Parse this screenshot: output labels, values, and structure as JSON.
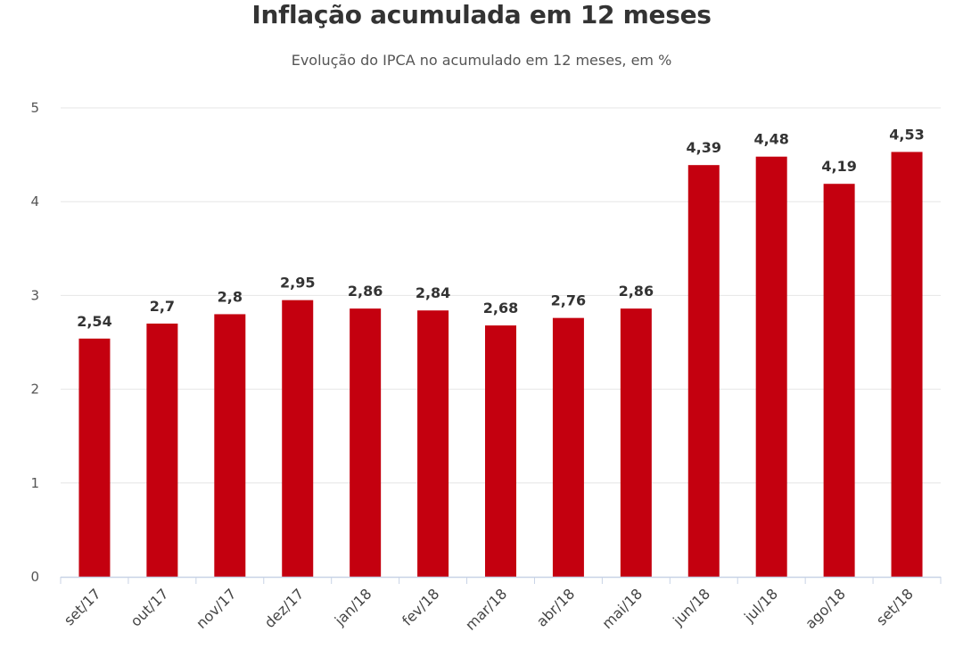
{
  "chart_data": {
    "type": "bar",
    "title": "Inflação acumulada em 12 meses",
    "subtitle": "Evolução do IPCA no acumulado em 12 meses, em %",
    "xlabel": "",
    "ylabel": "",
    "categories": [
      "set/17",
      "out/17",
      "nov/17",
      "dez/17",
      "jan/18",
      "fev/18",
      "mar/18",
      "abr/18",
      "mai/18",
      "jun/18",
      "jul/18",
      "ago/18",
      "set/18"
    ],
    "values": [
      2.54,
      2.7,
      2.8,
      2.95,
      2.86,
      2.84,
      2.68,
      2.76,
      2.86,
      4.39,
      4.48,
      4.19,
      4.53
    ],
    "value_labels": [
      "2,54",
      "2,7",
      "2,8",
      "2,95",
      "2,86",
      "2,84",
      "2,68",
      "2,76",
      "2,86",
      "4,39",
      "4,48",
      "4,19",
      "4,53"
    ],
    "ylim": [
      0,
      5
    ],
    "yticks": [
      0,
      1,
      2,
      3,
      4,
      5
    ],
    "grid": true,
    "legend": "none",
    "bar_color": "#c4000f",
    "grid_color": "#e6e6e6",
    "axis_color": "#c8d3e6"
  }
}
